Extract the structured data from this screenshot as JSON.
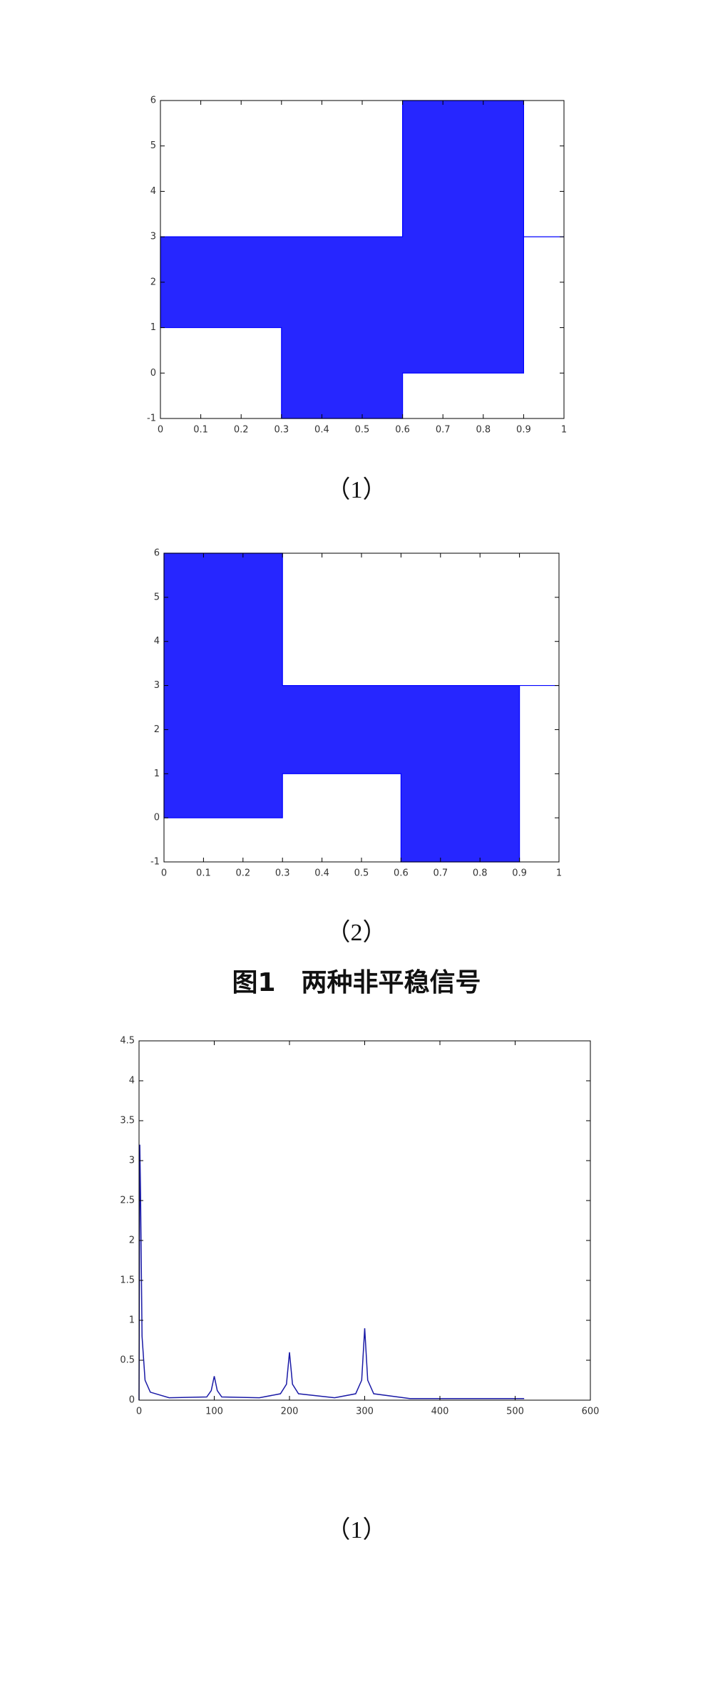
{
  "chart_data": [
    {
      "type": "band",
      "x": [
        0,
        0.3,
        0.3,
        0.6,
        0.6,
        0.9,
        0.9,
        1
      ],
      "upper": [
        3,
        3,
        3,
        3,
        6,
        6,
        3,
        3
      ],
      "lower": [
        1,
        1,
        -1,
        -1,
        0,
        0,
        3,
        3
      ],
      "color": "#0000ff",
      "xlim": [
        0,
        1
      ],
      "xticks": [
        0,
        0.1,
        0.2,
        0.3,
        0.4,
        0.5,
        0.6,
        0.7,
        0.8,
        0.9,
        1
      ],
      "ylim": [
        -1,
        6
      ],
      "yticks": [
        -1,
        0,
        1,
        2,
        3,
        4,
        5,
        6
      ],
      "grid": false
    },
    {
      "type": "band",
      "x": [
        0,
        0.3,
        0.3,
        0.6,
        0.6,
        0.9,
        0.9,
        1
      ],
      "upper": [
        6,
        6,
        3,
        3,
        3,
        3,
        3,
        3
      ],
      "lower": [
        0,
        0,
        1,
        1,
        -1,
        -1,
        3,
        3
      ],
      "color": "#0000ff",
      "xlim": [
        0,
        1
      ],
      "xticks": [
        0,
        0.1,
        0.2,
        0.3,
        0.4,
        0.5,
        0.6,
        0.7,
        0.8,
        0.9,
        1
      ],
      "ylim": [
        -1,
        6
      ],
      "yticks": [
        -1,
        0,
        1,
        2,
        3,
        4,
        5,
        6
      ],
      "grid": false
    },
    {
      "type": "line",
      "x": [
        0,
        1,
        2,
        4,
        8,
        15,
        40,
        90,
        96,
        100,
        104,
        110,
        160,
        188,
        196,
        200,
        204,
        212,
        260,
        288,
        296,
        300,
        304,
        312,
        360,
        512
      ],
      "values": [
        0,
        3.2,
        2.6,
        0.8,
        0.25,
        0.1,
        0.03,
        0.04,
        0.12,
        0.3,
        0.12,
        0.04,
        0.03,
        0.08,
        0.2,
        0.6,
        0.2,
        0.08,
        0.03,
        0.08,
        0.25,
        0.9,
        0.25,
        0.08,
        0.02,
        0.02
      ],
      "color": "#1a1aa6",
      "xlim": [
        0,
        600
      ],
      "xticks": [
        0,
        100,
        200,
        300,
        400,
        500,
        600
      ],
      "ylim": [
        0,
        4.5
      ],
      "yticks": [
        0,
        0.5,
        1,
        1.5,
        2,
        2.5,
        3,
        3.5,
        4,
        4.5
      ],
      "grid": false
    }
  ],
  "captions": [
    "（1）",
    "（2）",
    "（1）"
  ],
  "figure_title": "图1　两种非平稳信号"
}
